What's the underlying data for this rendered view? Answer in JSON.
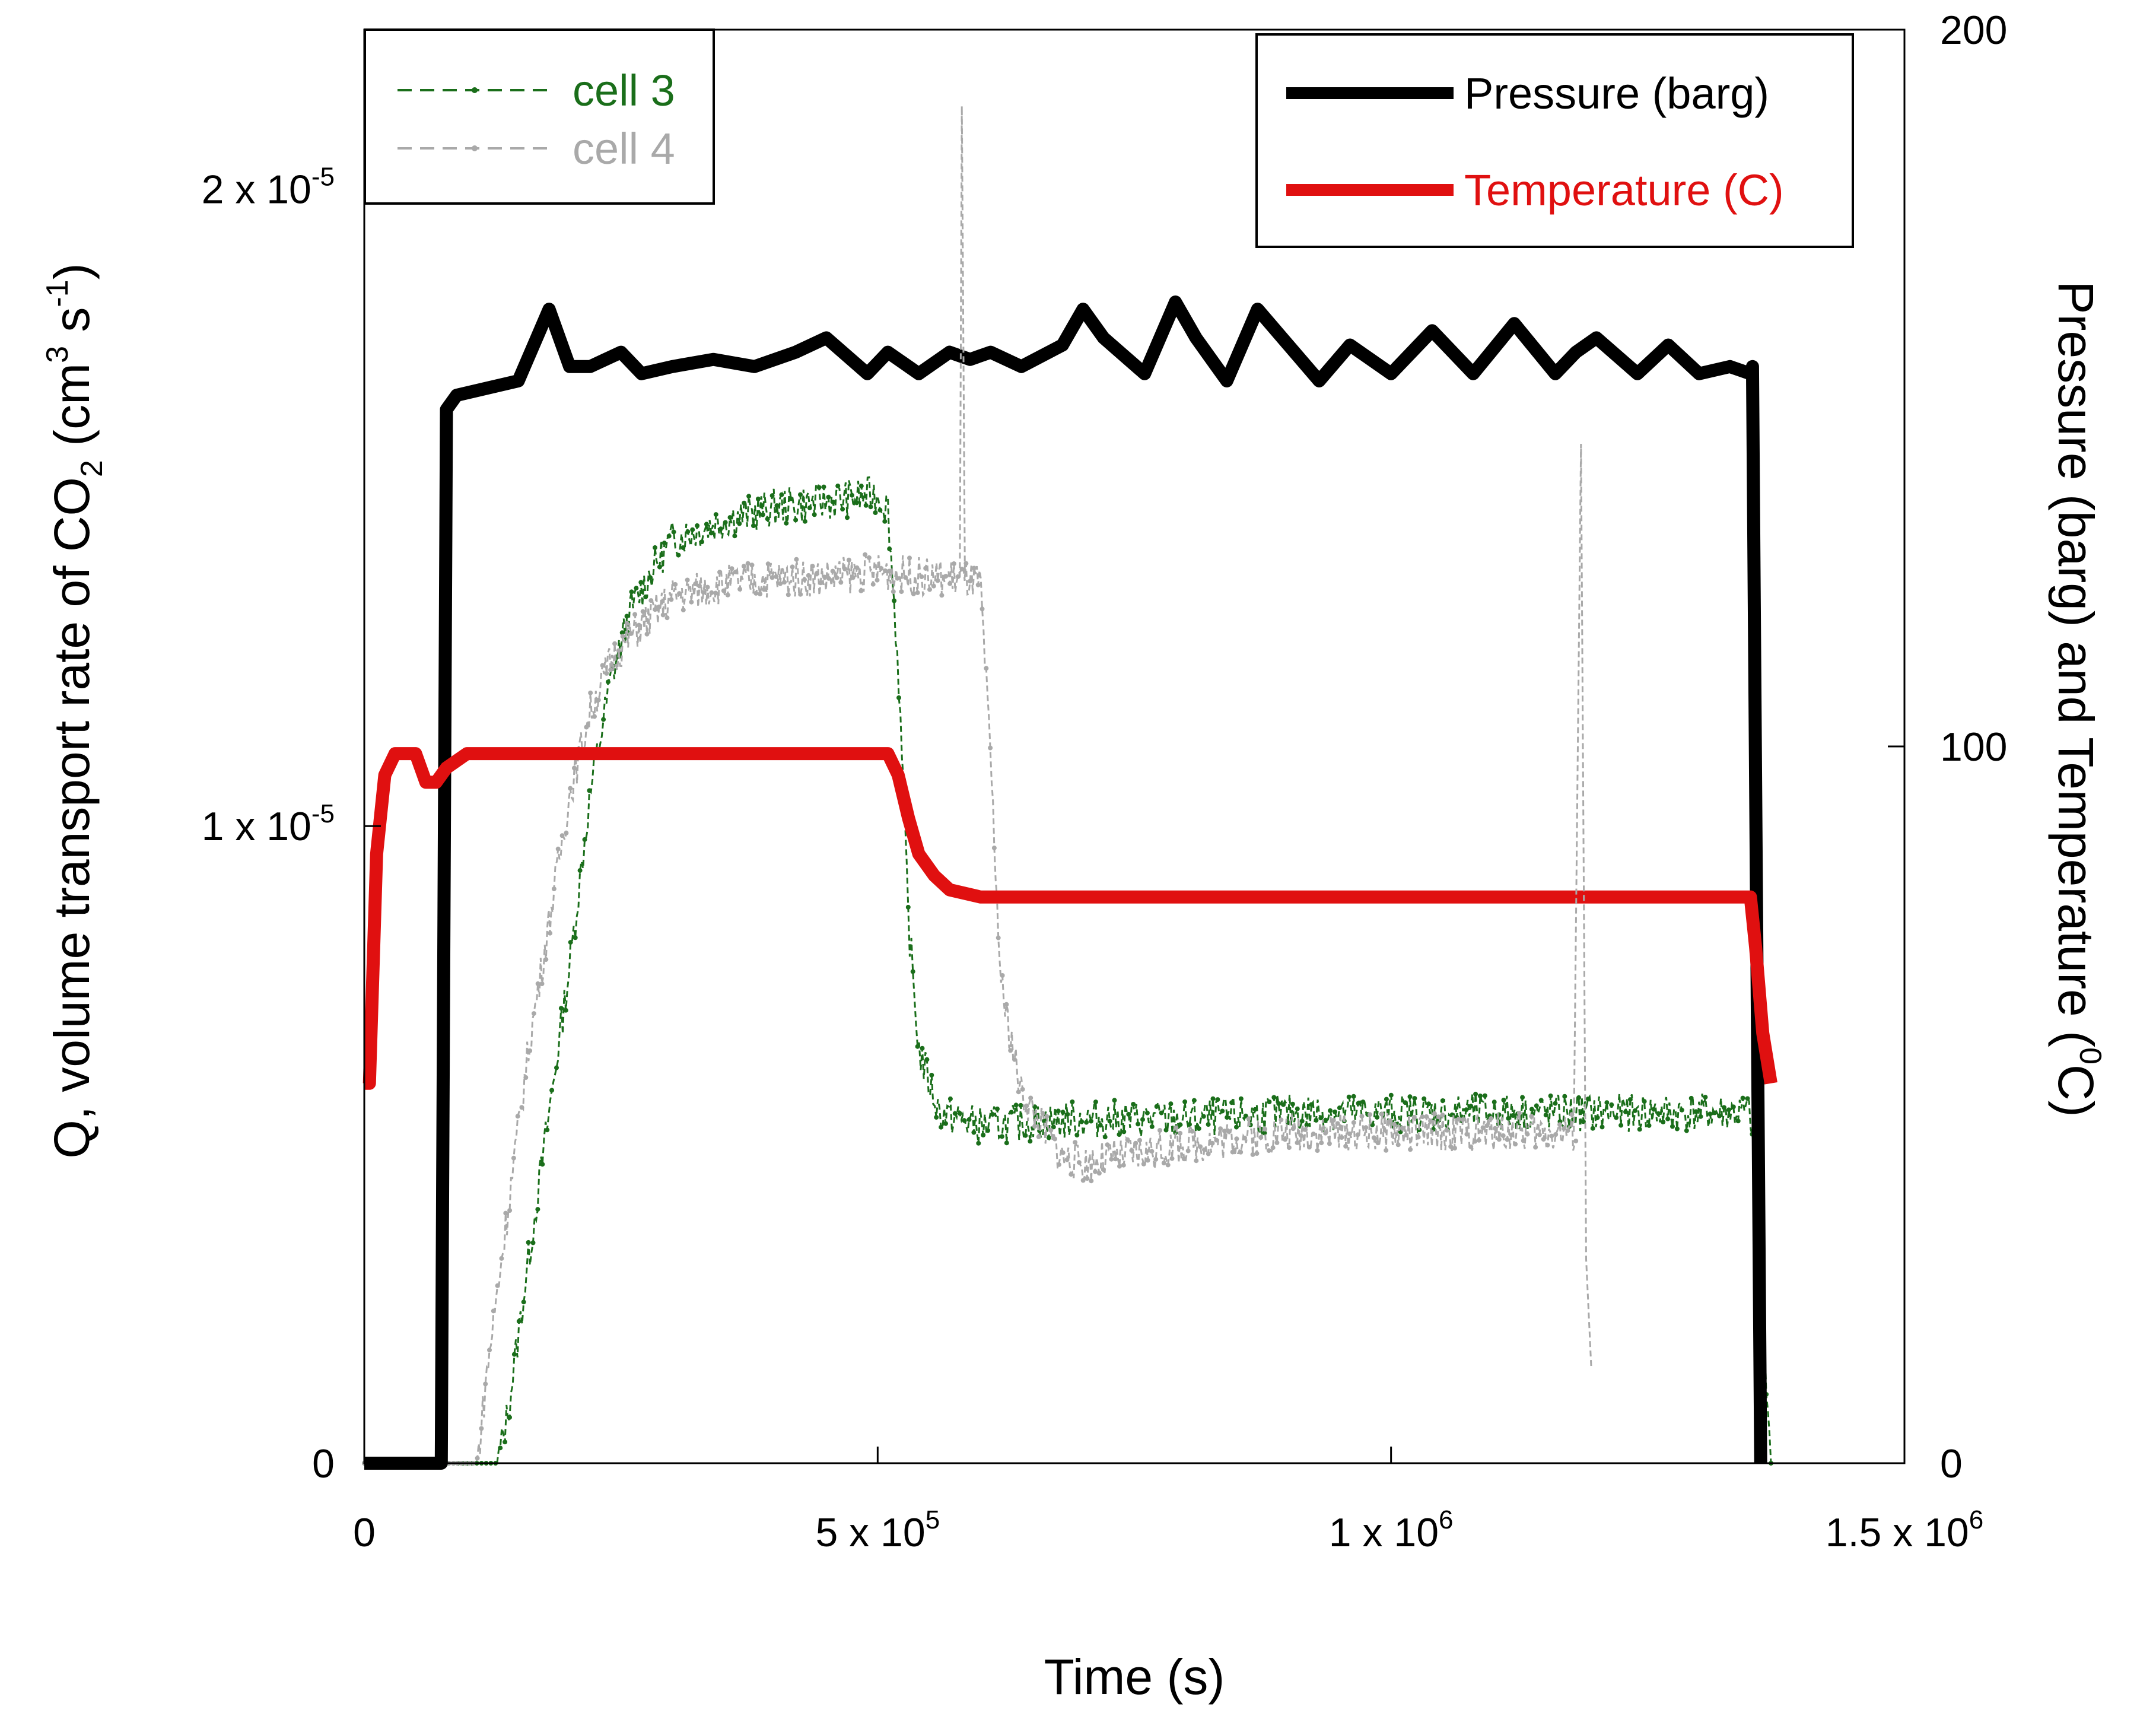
{
  "chart_data": {
    "type": "line",
    "title": "",
    "xlabel": "Time (s)",
    "ylabel_left": {
      "main": "Q, volume transport rate of  CO",
      "sub": "2",
      "units_open": "  (cm",
      "units_sup1": "3",
      "units_mid": " s",
      "units_sup2": "-1",
      "units_close": ")"
    },
    "ylabel_right": {
      "main": "Pressure (barg) and Temperature (",
      "sup": "0",
      "close": "C)"
    },
    "xlim": [
      0,
      1500000
    ],
    "ylim_left": [
      0,
      2.25e-05
    ],
    "ylim_right": [
      0,
      200
    ],
    "x_ticks": [
      {
        "value": 0,
        "label": "0",
        "sup": ""
      },
      {
        "value": 500000,
        "label": "5 x 10",
        "sup": "5"
      },
      {
        "value": 1000000,
        "label": "1 x 10",
        "sup": "6"
      },
      {
        "value": 1500000,
        "label": "1.5 x 10",
        "sup": "6"
      }
    ],
    "y_ticks_left": [
      {
        "value": 0,
        "label": "0",
        "sup": ""
      },
      {
        "value": 1e-05,
        "label": "1 x 10",
        "sup": "-5"
      },
      {
        "value": 2e-05,
        "label": "2 x 10",
        "sup": "-5"
      }
    ],
    "y_ticks_right": [
      {
        "value": 0,
        "label": "0"
      },
      {
        "value": 100,
        "label": "100"
      },
      {
        "value": 200,
        "label": "200"
      }
    ],
    "legend_left_position": "top-left",
    "legend_right_position": "top-right",
    "grid": false,
    "series": [
      {
        "name": "cell 3",
        "axis": "left",
        "color": "#1a6e1a",
        "style": "dashed-markers",
        "x": [
          0,
          130000,
          140000,
          160000,
          180000,
          200000,
          220000,
          240000,
          260000,
          280000,
          300000,
          350000,
          400000,
          450000,
          500000,
          510000,
          520000,
          530000,
          540000,
          560000,
          600000,
          700000,
          800000,
          900000,
          1000000,
          1100000,
          1200000,
          1300000,
          1350000,
          1360000,
          1370000
        ],
        "y": [
          0,
          0,
          8e-07,
          3.2e-06,
          5.5e-06,
          7.8e-06,
          1.05e-05,
          1.23e-05,
          1.34e-05,
          1.4e-05,
          1.45e-05,
          1.48e-05,
          1.5e-05,
          1.51e-05,
          1.52e-05,
          1.5e-05,
          1.25e-05,
          8.5e-06,
          6.5e-06,
          5.5e-06,
          5.3e-06,
          5.4e-06,
          5.4e-06,
          5.5e-06,
          5.5e-06,
          5.5e-06,
          5.5e-06,
          5.5e-06,
          5.5e-06,
          3e-06,
          0
        ]
      },
      {
        "name": "cell 4",
        "axis": "left",
        "color": "#a9a9a9",
        "style": "dashed-markers",
        "x": [
          0,
          110000,
          120000,
          140000,
          160000,
          180000,
          200000,
          220000,
          240000,
          260000,
          280000,
          300000,
          350000,
          400000,
          450000,
          500000,
          550000,
          580000,
          600000,
          610000,
          620000,
          640000,
          680000,
          700000,
          800000,
          900000,
          1000000,
          1100000,
          1180000
        ],
        "y": [
          0,
          0,
          1.5e-06,
          4e-06,
          6.5e-06,
          8.5e-06,
          1.05e-05,
          1.18e-05,
          1.26e-05,
          1.3e-05,
          1.33e-05,
          1.36e-05,
          1.38e-05,
          1.39e-05,
          1.39e-05,
          1.4e-05,
          1.39e-05,
          1.39e-05,
          1.38e-05,
          1.1e-05,
          7.5e-06,
          5.8e-06,
          4.8e-06,
          4.7e-06,
          5e-06,
          5.2e-06,
          5.2e-06,
          5.2e-06,
          5.2e-06
        ]
      },
      {
        "name": "Pressure (barg)",
        "axis": "right",
        "color": "#000000",
        "style": "thick",
        "x": [
          0,
          75000,
          80000,
          90000,
          120000,
          150000,
          180000,
          200000,
          220000,
          250000,
          270000,
          300000,
          340000,
          380000,
          420000,
          450000,
          490000,
          510000,
          540000,
          570000,
          590000,
          610000,
          640000,
          680000,
          700000,
          720000,
          760000,
          790000,
          810000,
          840000,
          870000,
          900000,
          930000,
          960000,
          1000000,
          1040000,
          1080000,
          1120000,
          1160000,
          1180000,
          1200000,
          1240000,
          1270000,
          1300000,
          1330000,
          1350000,
          1352000,
          1360000
        ],
        "y": [
          0,
          0,
          147,
          149,
          150,
          151,
          161,
          153,
          153,
          155,
          152,
          153,
          154,
          153,
          155,
          157,
          152,
          155,
          152,
          155,
          154,
          155,
          153,
          156,
          161,
          157,
          152,
          162,
          157,
          151,
          161,
          156,
          151,
          156,
          152,
          158,
          152,
          159,
          152,
          155,
          157,
          152,
          156,
          152,
          153,
          152,
          153,
          0
        ]
      },
      {
        "name": "Temperature (C)",
        "axis": "right",
        "color": "#e01010",
        "style": "thick",
        "x": [
          0,
          5000,
          12000,
          20000,
          30000,
          50000,
          60000,
          70000,
          80000,
          100000,
          150000,
          200000,
          300000,
          400000,
          500000,
          510000,
          520000,
          530000,
          540000,
          555000,
          570000,
          600000,
          700000,
          800000,
          900000,
          1000000,
          1100000,
          1200000,
          1300000,
          1350000,
          1355000,
          1362000,
          1370000
        ],
        "y": [
          53,
          53,
          85,
          96,
          99,
          99,
          95,
          95,
          97,
          99,
          99,
          99,
          99,
          99,
          99,
          99,
          96,
          90,
          85,
          82,
          80,
          79,
          79,
          79,
          79,
          79,
          79,
          79,
          79,
          79,
          72,
          60,
          53
        ]
      }
    ],
    "spikes": [
      {
        "series": "cell 4",
        "x": [
          580000,
          582000,
          585000
        ],
        "y": [
          1.39e-05,
          2.13e-05,
          1.39e-05
        ]
      },
      {
        "series": "cell 4",
        "x": [
          1178000,
          1185000,
          1190000,
          1195000
        ],
        "y": [
          5.2e-06,
          1.6e-05,
          3.2e-06,
          1.5e-06
        ]
      }
    ]
  }
}
